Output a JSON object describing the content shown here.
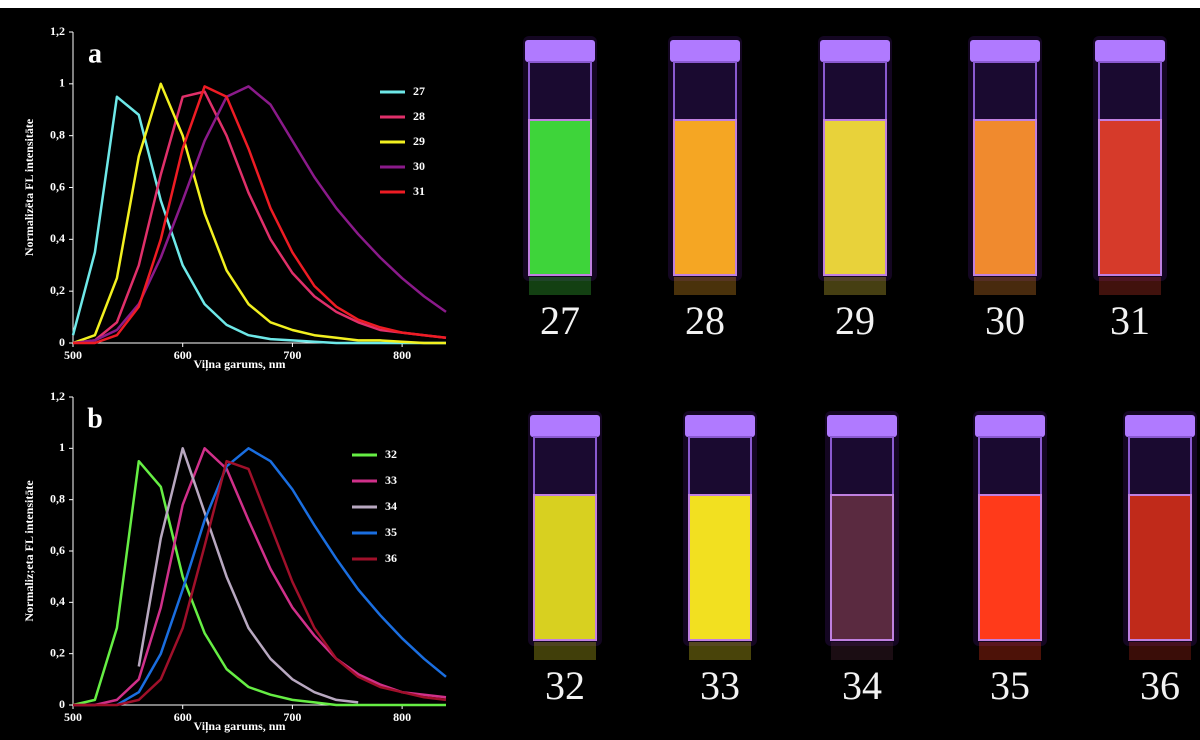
{
  "chart_data": [
    {
      "type": "line",
      "annotation": "a",
      "xlabel": "Viļna garums, nm",
      "ylabel": "Normalizēta FL intensitāte",
      "x": [
        500,
        520,
        540,
        560,
        580,
        600,
        620,
        640,
        660,
        680,
        700,
        720,
        740,
        760,
        780,
        800,
        820,
        840
      ],
      "xlim": [
        500,
        840
      ],
      "xticks": [
        500,
        600,
        700,
        800
      ],
      "ylim": [
        0,
        1.2
      ],
      "yticks": [
        0,
        {
          "value": 0.2,
          "label": "0,2"
        },
        {
          "value": 0.4,
          "label": "0,4"
        },
        {
          "value": 0.6,
          "label": "0,6"
        },
        {
          "value": 0.8,
          "label": "0,8"
        },
        1,
        {
          "value": 1.2,
          "label": "1,2"
        }
      ],
      "series": [
        {
          "name": "27",
          "color": "#6ee8e8",
          "values": [
            0.03,
            0.35,
            0.95,
            0.88,
            0.55,
            0.3,
            0.15,
            0.07,
            0.03,
            0.015,
            0.01,
            0.005,
            0,
            0,
            0,
            0,
            0,
            0
          ]
        },
        {
          "name": "28",
          "color": "#e0306a",
          "values": [
            0,
            0.01,
            0.08,
            0.3,
            0.65,
            0.95,
            0.97,
            0.8,
            0.58,
            0.4,
            0.27,
            0.18,
            0.12,
            0.08,
            0.05,
            0.04,
            0.03,
            0.02
          ]
        },
        {
          "name": "29",
          "color": "#f2f020",
          "values": [
            0,
            0.03,
            0.25,
            0.72,
            1.0,
            0.8,
            0.5,
            0.28,
            0.15,
            0.08,
            0.05,
            0.03,
            0.02,
            0.01,
            0.01,
            0.005,
            0,
            0
          ]
        },
        {
          "name": "30",
          "color": "#8a1a8a",
          "values": [
            0,
            0.01,
            0.05,
            0.15,
            0.33,
            0.55,
            0.78,
            0.95,
            0.99,
            0.92,
            0.78,
            0.64,
            0.52,
            0.42,
            0.33,
            0.25,
            0.18,
            0.12
          ]
        },
        {
          "name": "31",
          "color": "#ee1c24",
          "values": [
            0,
            0,
            0.03,
            0.14,
            0.4,
            0.75,
            0.99,
            0.95,
            0.75,
            0.52,
            0.35,
            0.22,
            0.14,
            0.09,
            0.06,
            0.04,
            0.03,
            0.02
          ]
        }
      ]
    },
    {
      "type": "line",
      "annotation": "b",
      "xlabel": "Viļna garums, nm",
      "ylabel": "Normaliz;eta FL intensitāte",
      "x": [
        500,
        520,
        540,
        560,
        580,
        600,
        620,
        640,
        660,
        680,
        700,
        720,
        740,
        760,
        780,
        800,
        820,
        840
      ],
      "xlim": [
        500,
        840
      ],
      "xticks": [
        500,
        600,
        700,
        800
      ],
      "ylim": [
        0,
        1.2
      ],
      "yticks": [
        0,
        {
          "value": 0.2,
          "label": "0,2"
        },
        {
          "value": 0.4,
          "label": "0,4"
        },
        {
          "value": 0.6,
          "label": "0,6"
        },
        {
          "value": 0.8,
          "label": "0,8"
        },
        1,
        {
          "value": 1.2,
          "label": "1,2"
        }
      ],
      "series": [
        {
          "name": "32",
          "color": "#66ee44",
          "values": [
            0,
            0.02,
            0.3,
            0.95,
            0.85,
            0.5,
            0.28,
            0.14,
            0.07,
            0.04,
            0.02,
            0.01,
            0,
            0,
            0,
            0,
            0,
            0
          ]
        },
        {
          "name": "33",
          "color": "#d0308a",
          "values": [
            0,
            0,
            0.02,
            0.1,
            0.38,
            0.78,
            1.0,
            0.92,
            0.72,
            0.53,
            0.38,
            0.27,
            0.18,
            0.12,
            0.08,
            0.05,
            0.04,
            0.03
          ]
        },
        {
          "name": "34",
          "color": "#b8a8c0",
          "values": [
            null,
            null,
            null,
            0.15,
            0.65,
            1.0,
            0.75,
            0.5,
            0.3,
            0.18,
            0.1,
            0.05,
            0.02,
            0.01,
            null,
            null,
            null,
            null
          ]
        },
        {
          "name": "35",
          "color": "#1a6ee0",
          "values": [
            null,
            null,
            0,
            0.05,
            0.2,
            0.45,
            0.72,
            0.93,
            1.0,
            0.95,
            0.84,
            0.7,
            0.57,
            0.45,
            0.35,
            0.26,
            0.18,
            0.11
          ]
        },
        {
          "name": "36",
          "color": "#a0102a",
          "values": [
            0,
            0,
            0,
            0.02,
            0.1,
            0.3,
            0.62,
            0.95,
            0.92,
            0.7,
            0.48,
            0.3,
            0.18,
            0.11,
            0.07,
            0.05,
            0.03,
            0.02
          ]
        }
      ]
    }
  ],
  "photos": [
    {
      "vials": [
        {
          "label": "27",
          "color": "#3ed43a"
        },
        {
          "label": "28",
          "color": "#f5a623"
        },
        {
          "label": "29",
          "color": "#e8d23a"
        },
        {
          "label": "30",
          "color": "#f08a2e"
        },
        {
          "label": "31",
          "color": "#d63a2a"
        }
      ]
    },
    {
      "vials": [
        {
          "label": "32",
          "color": "#d8d020"
        },
        {
          "label": "33",
          "color": "#f2e020"
        },
        {
          "label": "34",
          "color": "#5a2a40"
        },
        {
          "label": "35",
          "color": "#ff3a1a"
        },
        {
          "label": "36",
          "color": "#c02a1a"
        }
      ]
    }
  ]
}
